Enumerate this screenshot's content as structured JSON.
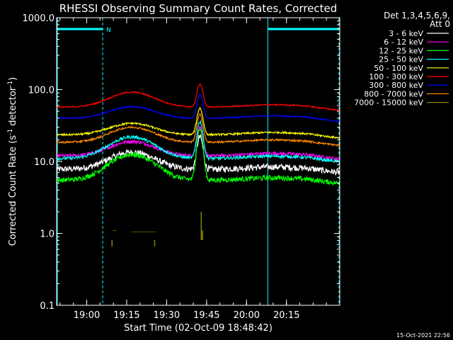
{
  "chart_data": {
    "type": "line",
    "title": "RHESSI Observing Summary Count Rates, Corrected",
    "xlabel": "Start Time (02-Oct-09 18:48:42)",
    "ylabel_main": "Corrected Count Rate (s",
    "ylabel_sup1": "-1",
    "ylabel_mid": " detector",
    "ylabel_sup2": "-1",
    "ylabel_end": ")",
    "ylim": [
      0.1,
      1000.0
    ],
    "y_scale": "log",
    "xlim_minutes": [
      "18:48:42",
      "20:35:00"
    ],
    "x_ticks": [
      "19:00",
      "19:15",
      "19:30",
      "19:45",
      "20:00",
      "20:15"
    ],
    "y_ticks": [
      "0.1",
      "1.0",
      "10.0",
      "100.0",
      "1000.0"
    ],
    "legend_placement": "top-right",
    "legend_header": [
      "Det 1,3,4,5,6,9,",
      "Att 0"
    ],
    "timestamp": "15-Oct-2021 22:56",
    "night_marker": "N",
    "night_intervals": [
      [
        "18:48:42",
        "19:06:00"
      ],
      [
        "20:08:00",
        "20:35:00"
      ]
    ],
    "shade_color": "#00ffff",
    "series": [
      {
        "name": "3 - 6 keV",
        "color": "#ffffff",
        "base": 7.8,
        "hump": 13.5,
        "peak": 22,
        "noise": 0.1
      },
      {
        "name": "6 - 12 keV",
        "color": "#ff00ff",
        "base": 12.0,
        "hump": 19,
        "peak": 30,
        "noise": 0.05
      },
      {
        "name": "12 - 25 keV",
        "color": "#00ff00",
        "base": 5.5,
        "hump": 12.5,
        "peak": 28,
        "noise": 0.08
      },
      {
        "name": "25 - 50 keV",
        "color": "#00ffff",
        "base": 11.0,
        "hump": 22,
        "peak": 36,
        "noise": 0.05
      },
      {
        "name": "50 - 100 keV",
        "color": "#ffff00",
        "base": 23.5,
        "hump": 34,
        "peak": 55,
        "noise": 0.03
      },
      {
        "name": "100 - 300 keV",
        "color": "#ff0000",
        "base": 57,
        "hump": 92,
        "peak": 120,
        "noise": 0.02
      },
      {
        "name": "300 - 800 keV",
        "color": "#0000ff",
        "base": 40,
        "hump": 58,
        "peak": 85,
        "noise": 0.02
      },
      {
        "name": "800 - 7000 keV",
        "color": "#ff8800",
        "base": 18.5,
        "hump": 30,
        "peak": 45,
        "noise": 0.03
      },
      {
        "name": "7000 - 15000 keV",
        "color": "#888800",
        "base": 0,
        "hump": 0,
        "peak": 2.0,
        "noise": 0
      }
    ]
  }
}
